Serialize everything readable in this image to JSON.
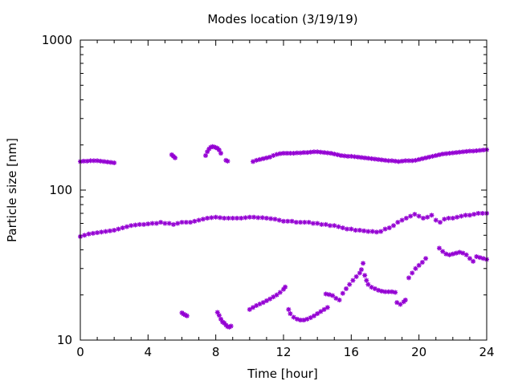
{
  "chart_data": {
    "type": "scatter",
    "title": "Modes location (3/19/19)",
    "xlabel": "Time [hour]",
    "ylabel": "Particle size [nm]",
    "xlim": [
      0,
      24
    ],
    "ylim": [
      10,
      1000
    ],
    "y_scale": "log",
    "grid": false,
    "legend": "none",
    "x_ticks": [
      0,
      4,
      8,
      12,
      16,
      20,
      24
    ],
    "x_tick_labels": [
      "0",
      "4",
      "8",
      "12",
      "16",
      "20",
      "24"
    ],
    "y_ticks": [
      10,
      100,
      1000
    ],
    "y_tick_labels": [
      "10",
      "100",
      "1000"
    ],
    "marker_color": "#9400d3",
    "series": [
      {
        "x": [
          0.0,
          0.2,
          0.4,
          0.6,
          0.8,
          1.0,
          1.2,
          1.4,
          1.6,
          1.8,
          2.0,
          5.4,
          5.5,
          5.6,
          7.4,
          7.5,
          7.6,
          7.7,
          7.8,
          7.9,
          8.0,
          8.1,
          8.2,
          8.3,
          8.6,
          8.7,
          10.2,
          10.4,
          10.6,
          10.8,
          11.0,
          11.2,
          11.4,
          11.6,
          11.8,
          12.0,
          12.2,
          12.4,
          12.6,
          12.8,
          13.0,
          13.2,
          13.4,
          13.6,
          13.8,
          14.0,
          14.2,
          14.4,
          14.6,
          14.8,
          15.0,
          15.2,
          15.4,
          15.6,
          15.8,
          16.0,
          16.2,
          16.4,
          16.6,
          16.8,
          17.0,
          17.2,
          17.4,
          17.6,
          17.8,
          18.0,
          18.2,
          18.4,
          18.6,
          18.8,
          19.0,
          19.2,
          19.4,
          19.6,
          19.8,
          20.0,
          20.2,
          20.4,
          20.6,
          20.8,
          21.0,
          21.2,
          21.4,
          21.6,
          21.8,
          22.0,
          22.2,
          22.4,
          22.6,
          22.8,
          23.0,
          23.2,
          23.4,
          23.6,
          23.8,
          24.0
        ],
        "y": [
          155,
          156,
          156,
          157,
          157,
          157,
          156,
          155,
          154,
          153,
          152,
          172,
          168,
          164,
          170,
          180,
          188,
          193,
          195,
          194,
          192,
          190,
          185,
          176,
          158,
          156,
          155,
          158,
          160,
          162,
          164,
          166,
          170,
          173,
          175,
          176,
          176,
          176,
          176,
          177,
          177,
          178,
          178,
          179,
          180,
          180,
          179,
          178,
          177,
          176,
          174,
          172,
          170,
          169,
          168,
          168,
          167,
          166,
          165,
          164,
          163,
          162,
          161,
          160,
          159,
          158,
          157,
          157,
          156,
          155,
          156,
          157,
          157,
          157,
          158,
          160,
          162,
          164,
          166,
          168,
          170,
          172,
          174,
          175,
          176,
          177,
          178,
          179,
          180,
          181,
          182,
          182,
          183,
          184,
          185,
          186
        ]
      },
      {
        "x": [
          0.0,
          0.25,
          0.5,
          0.75,
          1.0,
          1.25,
          1.5,
          1.75,
          2.0,
          2.25,
          2.5,
          2.75,
          3.0,
          3.25,
          3.5,
          3.75,
          4.0,
          4.25,
          4.5,
          4.75,
          5.0,
          5.25,
          5.5,
          5.75,
          6.0,
          6.25,
          6.5,
          6.75,
          7.0,
          7.25,
          7.5,
          7.75,
          8.0,
          8.25,
          8.5,
          8.75,
          9.0,
          9.25,
          9.5,
          9.75,
          10.0,
          10.25,
          10.5,
          10.75,
          11.0,
          11.25,
          11.5,
          11.75,
          12.0,
          12.25,
          12.5,
          12.75,
          13.0,
          13.25,
          13.5,
          13.75,
          14.0,
          14.25,
          14.5,
          14.75,
          15.0,
          15.25,
          15.5,
          15.75,
          16.0,
          16.25,
          16.5,
          16.75,
          17.0,
          17.25,
          17.5,
          17.75,
          18.0,
          18.25,
          18.5,
          18.75,
          19.0,
          19.25,
          19.5,
          19.75,
          20.0,
          20.25,
          20.5,
          20.75,
          21.0,
          21.25,
          21.5,
          21.75,
          22.0,
          22.25,
          22.5,
          22.75,
          23.0,
          23.25,
          23.5,
          23.75,
          24.0
        ],
        "y": [
          49,
          50,
          51,
          51.5,
          52,
          52.5,
          53,
          53.5,
          54,
          55,
          56,
          57,
          58,
          58.5,
          59,
          59,
          59.5,
          60,
          60,
          61,
          60,
          60,
          59,
          60,
          61,
          61,
          61,
          62,
          63,
          64,
          65,
          65.5,
          66,
          65.5,
          65,
          65,
          65,
          65,
          65,
          65.5,
          66,
          66,
          65.5,
          65.5,
          65,
          64.5,
          64,
          63,
          62,
          62,
          62,
          61,
          61,
          61,
          61,
          60,
          60,
          59,
          59,
          58,
          58,
          57,
          56,
          55,
          55,
          54,
          54,
          53.5,
          53,
          53,
          52.5,
          53,
          55,
          56,
          58,
          61,
          63,
          65,
          67,
          69,
          67,
          65,
          66,
          68,
          63,
          61,
          64,
          65,
          65,
          66,
          67,
          68,
          68,
          69,
          70,
          70,
          70
        ]
      },
      {
        "x": [
          6.0,
          6.1,
          6.2,
          6.3,
          8.1,
          8.2,
          8.3,
          8.4,
          8.5,
          8.6,
          8.7,
          8.8,
          8.9,
          10.0,
          10.2,
          10.4,
          10.6,
          10.8,
          11.0,
          11.2,
          11.4,
          11.6,
          11.8,
          12.0,
          12.1,
          12.3,
          12.4,
          12.6,
          12.8,
          13.0,
          13.2,
          13.4,
          13.6,
          13.8,
          14.0,
          14.2,
          14.4,
          14.6,
          14.5,
          14.7,
          14.9,
          15.1,
          15.3,
          15.5,
          15.7,
          15.9,
          16.1,
          16.3,
          16.5,
          16.6,
          16.7,
          16.8,
          16.9,
          17.0,
          17.2,
          17.4,
          17.6,
          17.8,
          18.0,
          18.2,
          18.4,
          18.6,
          18.7,
          18.9,
          19.1,
          19.2,
          19.4,
          19.6,
          19.8,
          20.0,
          20.2,
          20.4,
          21.2,
          21.4,
          21.6,
          21.8,
          22.0,
          22.2,
          22.4,
          22.6,
          22.8,
          23.0,
          23.2,
          23.4,
          23.6,
          23.8,
          24.0
        ],
        "y": [
          15.2,
          14.9,
          14.7,
          14.5,
          15.3,
          14.6,
          13.8,
          13.2,
          13.0,
          12.6,
          12.3,
          12.2,
          12.4,
          16.0,
          16.5,
          17.0,
          17.4,
          17.8,
          18.3,
          18.8,
          19.4,
          20.0,
          20.8,
          21.8,
          22.6,
          16.0,
          15.0,
          14.2,
          13.8,
          13.6,
          13.6,
          13.8,
          14.1,
          14.5,
          15.0,
          15.5,
          16.0,
          16.5,
          20.3,
          20.1,
          19.8,
          19.0,
          18.5,
          20.5,
          22.0,
          23.5,
          25.0,
          26.5,
          28.0,
          29.5,
          32.5,
          27.0,
          25.0,
          23.5,
          22.5,
          22.0,
          21.5,
          21.2,
          21.0,
          21.0,
          21.0,
          20.8,
          17.8,
          17.3,
          18.0,
          18.5,
          26.0,
          28.0,
          30.0,
          31.5,
          33.0,
          35.0,
          41.0,
          39.0,
          37.5,
          37.0,
          37.5,
          38.0,
          38.5,
          38.0,
          37.0,
          35.0,
          33.5,
          36.0,
          35.5,
          35.0,
          34.5
        ]
      }
    ]
  }
}
